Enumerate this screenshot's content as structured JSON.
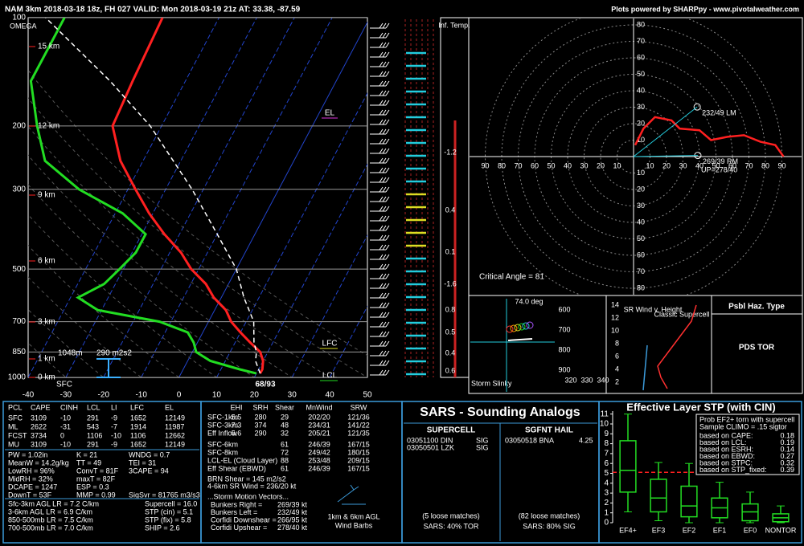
{
  "header": {
    "left": "NAM 3km 2018-03-18 18z, FH 027   VALID: Mon 2018-03-19 21z   AT: 33.38, -87.59",
    "right": "Plots powered by SHARPpy - www.pivotalweather.com"
  },
  "skewt": {
    "type": "line",
    "xlim": [
      -40,
      50
    ],
    "xticks": [
      -40,
      -30,
      -20,
      -10,
      0,
      10,
      20,
      30,
      40,
      50
    ],
    "ylim": [
      1000,
      100
    ],
    "yticks": [
      100,
      200,
      300,
      500,
      700,
      850,
      1000
    ],
    "height_labels": [
      "15 km",
      "12 km",
      "9 km",
      "6 km",
      "3 km",
      "1 km",
      "0 km"
    ],
    "annotations": {
      "omega": "OMEGA",
      "el": "EL",
      "lfc": "LFC",
      "lcl": "LCL",
      "sfc": "SFC",
      "sfc_temps": "68/93",
      "inflow_depth": "1048m",
      "inflow_srh": "290 m2s2"
    },
    "series": [
      {
        "color": "#ff2020",
        "pressure": [
          975,
          950,
          900,
          850,
          800,
          750,
          700,
          650,
          600,
          550,
          500,
          450,
          400,
          350,
          300,
          250,
          200,
          150,
          100
        ],
        "values": [
          21,
          21,
          20,
          18,
          14,
          10,
          6,
          3,
          -2,
          -6,
          -12,
          -17,
          -24,
          -31,
          -38,
          -46,
          -53,
          -54,
          -55
        ]
      },
      {
        "color": "#22dd22",
        "pressure": [
          975,
          950,
          900,
          850,
          800,
          750,
          700,
          650,
          600,
          550,
          500,
          450,
          400,
          350,
          300,
          250,
          200,
          150,
          100
        ],
        "values": [
          20,
          15,
          6,
          1,
          -1,
          -4,
          -13,
          -31,
          -38,
          -33,
          -31,
          -29,
          -29,
          -38,
          -53,
          -66,
          -73,
          -81,
          -81
        ]
      },
      {
        "color": "#ffffff",
        "pressure": [
          975,
          900,
          850,
          800,
          700,
          600,
          500,
          400,
          300,
          250,
          200,
          150,
          100
        ],
        "values": [
          21,
          18,
          17,
          15,
          12,
          6,
          0,
          -10,
          -23,
          -32,
          -43,
          -60,
          -86
        ]
      }
    ]
  },
  "inferred_temp": {
    "title": "Inf. Temp.",
    "labels": [
      "-1.2",
      "0.4",
      "0.1",
      "-1.6",
      "0.8",
      "0.5",
      "0.4",
      "0.6"
    ]
  },
  "hodograph": {
    "type": "line",
    "ring_labels": [
      10,
      20,
      30,
      40,
      50,
      60,
      70,
      80,
      90
    ],
    "u": [
      1,
      6,
      13,
      23,
      28,
      40,
      47,
      57,
      67,
      77,
      86,
      91
    ],
    "v": [
      7,
      17,
      24,
      22,
      17,
      16,
      10,
      12,
      13,
      9,
      7,
      0
    ],
    "color": "#ff2020",
    "storm_motion": [
      {
        "label": "232/49 LM",
        "dir": 232,
        "spd": 49
      },
      {
        "label": "269/39 RM",
        "dir": 269,
        "spd": 39
      }
    ],
    "upshear": "UP=278/40",
    "critical_angle": "Critical Angle = 81"
  },
  "slinky": {
    "title": "Storm Slinky",
    "angle": "74.0 deg",
    "y_labels": [
      "600",
      "700",
      "800",
      "900"
    ],
    "x_labels": [
      "320",
      "330",
      "340"
    ]
  },
  "sr_wind": {
    "title": "SR Wind v. Height",
    "y_labels": [
      "14",
      "12",
      "10",
      "8",
      "6",
      "4",
      "2"
    ],
    "note": "Classic Supercell"
  },
  "hazard": {
    "title": "Psbl Haz. Type",
    "value": "PDS TOR"
  },
  "thermo": {
    "header": [
      "PCL",
      "CAPE",
      "CINH",
      "LCL",
      "LI",
      "LFC",
      "EL"
    ],
    "rows": [
      [
        "SFC",
        3109,
        -10,
        291,
        -9,
        1652,
        12149
      ],
      [
        "ML",
        2622,
        -31,
        543,
        -7,
        1914,
        11987
      ],
      [
        "FCST",
        3734,
        0,
        1106,
        -10,
        1106,
        12662
      ],
      [
        "MU",
        3109,
        -10,
        291,
        -9,
        1652,
        12149
      ]
    ],
    "indices": [
      [
        "PW = 1.02in",
        "K = 21",
        "WNDG = 0.7"
      ],
      [
        "MeanW = 14.2g/kg",
        "TT = 49",
        "TEI = 31"
      ],
      [
        "LowRH = 96%",
        "ConvT = 81F",
        "3CAPE = 94"
      ],
      [
        "MidRH = 32%",
        "maxT = 82F",
        ""
      ],
      [
        "DCAPE = 1247",
        "ESP = 0.3",
        ""
      ],
      [
        "DownT = 53F",
        "MMP = 0.99",
        "SigSvr = 81765 m3/s3"
      ]
    ],
    "lapse_rates": [
      "Sfc-3km AGL LR = 7.2 C/km",
      "3-6km AGL LR = 6.9 C/km",
      "850-500mb LR = 7.5 C/km",
      "700-500mb LR = 7.0 C/km"
    ],
    "composites": [
      "Supercell = 16.0",
      "STP (cin) = 5.1",
      "STP (fix) = 5.8",
      "SHIP = 2.6"
    ]
  },
  "kinematics": {
    "header": [
      "EHI",
      "SRH",
      "Shear",
      "MnWind",
      "SRW"
    ],
    "rows": [
      [
        "SFC-1km",
        "5.5",
        "280",
        "29",
        "202/20",
        "121/36"
      ],
      [
        "SFC-3km",
        "7.3",
        "374",
        "48",
        "234/31",
        "141/22"
      ],
      [
        "Eff Inflow",
        "5.6",
        "290",
        "32",
        "205/21",
        "121/35"
      ],
      [
        "SFC-6km",
        "",
        "",
        "61",
        "246/39",
        "167/15"
      ],
      [
        "SFC-8km",
        "",
        "",
        "72",
        "249/42",
        "180/15"
      ],
      [
        "LCL-EL (Cloud Layer)",
        "",
        "",
        "88",
        "253/48",
        "209/15"
      ],
      [
        "Eff Shear (EBWD)",
        "",
        "",
        "61",
        "246/39",
        "167/15"
      ]
    ],
    "brn": "BRN Shear = 145 m2/s2",
    "sr46": "4-6km SR Wind = 236/20 kt",
    "motion_title": "...Storm Motion Vectors...",
    "motions": [
      [
        "Bunkers Right = ",
        "269/39 kt"
      ],
      [
        "Bunkers Left = ",
        "232/49 kt"
      ],
      [
        "Corfidi Downshear = ",
        "266/95 kt"
      ],
      [
        "Corfidi Upshear = ",
        "278/40 kt"
      ]
    ],
    "barb_note": [
      "1km & 6km AGL",
      "Wind Barbs"
    ]
  },
  "sars": {
    "title": "SARS - Sounding Analogs",
    "supercell": {
      "title": "SUPERCELL",
      "matches": [
        "03051100 DIN",
        "03050501 LZK"
      ],
      "flags": [
        "SIG",
        "SIG"
      ],
      "loose": "(5 loose matches)",
      "summary": "SARS: 40% TOR"
    },
    "hail": {
      "title": "SGFNT HAIL",
      "matches": [
        "03050518 BNA"
      ],
      "flags": [
        "4.25"
      ],
      "loose": "(82 loose matches)",
      "summary": "SARS: 80% SIG"
    }
  },
  "chart_data": {
    "type": "box",
    "title": "Effective Layer STP (with CIN)",
    "categories": [
      "EF4+",
      "EF3",
      "EF2",
      "EF1",
      "EF0",
      "NONTOR"
    ],
    "whislo": [
      1.1,
      0.2,
      0,
      0,
      0,
      0
    ],
    "q1": [
      3.1,
      1.1,
      0.6,
      0.5,
      0.2,
      0.1
    ],
    "med": [
      5.3,
      2.5,
      1.7,
      1.5,
      1.1,
      0.5
    ],
    "q3": [
      8.3,
      4.4,
      3.7,
      2.5,
      1.9,
      0.9
    ],
    "whishi": [
      11,
      6.1,
      6,
      4.1,
      3.1,
      1.7
    ],
    "color": "#22dd22",
    "current": 5.1,
    "current_color": "#ff2020",
    "ylim": [
      0,
      11.3
    ],
    "yticks": [
      0,
      1,
      2,
      3,
      4,
      5,
      6,
      7,
      8,
      9,
      10,
      11
    ],
    "prob": {
      "title": [
        "Prob EF2+ torn with supercell",
        "Sample CLIMO = .15 sigtor"
      ],
      "rows": [
        [
          "based on CAPE:",
          "0.18"
        ],
        [
          "based on LCL:",
          "0.19"
        ],
        [
          "based on ESRH:",
          "0.14"
        ],
        [
          "based on EBWD:",
          "0.27"
        ],
        [
          "based on STPC:",
          "0.32"
        ],
        [
          "based on STP_fixed:",
          "0.39"
        ]
      ]
    }
  }
}
